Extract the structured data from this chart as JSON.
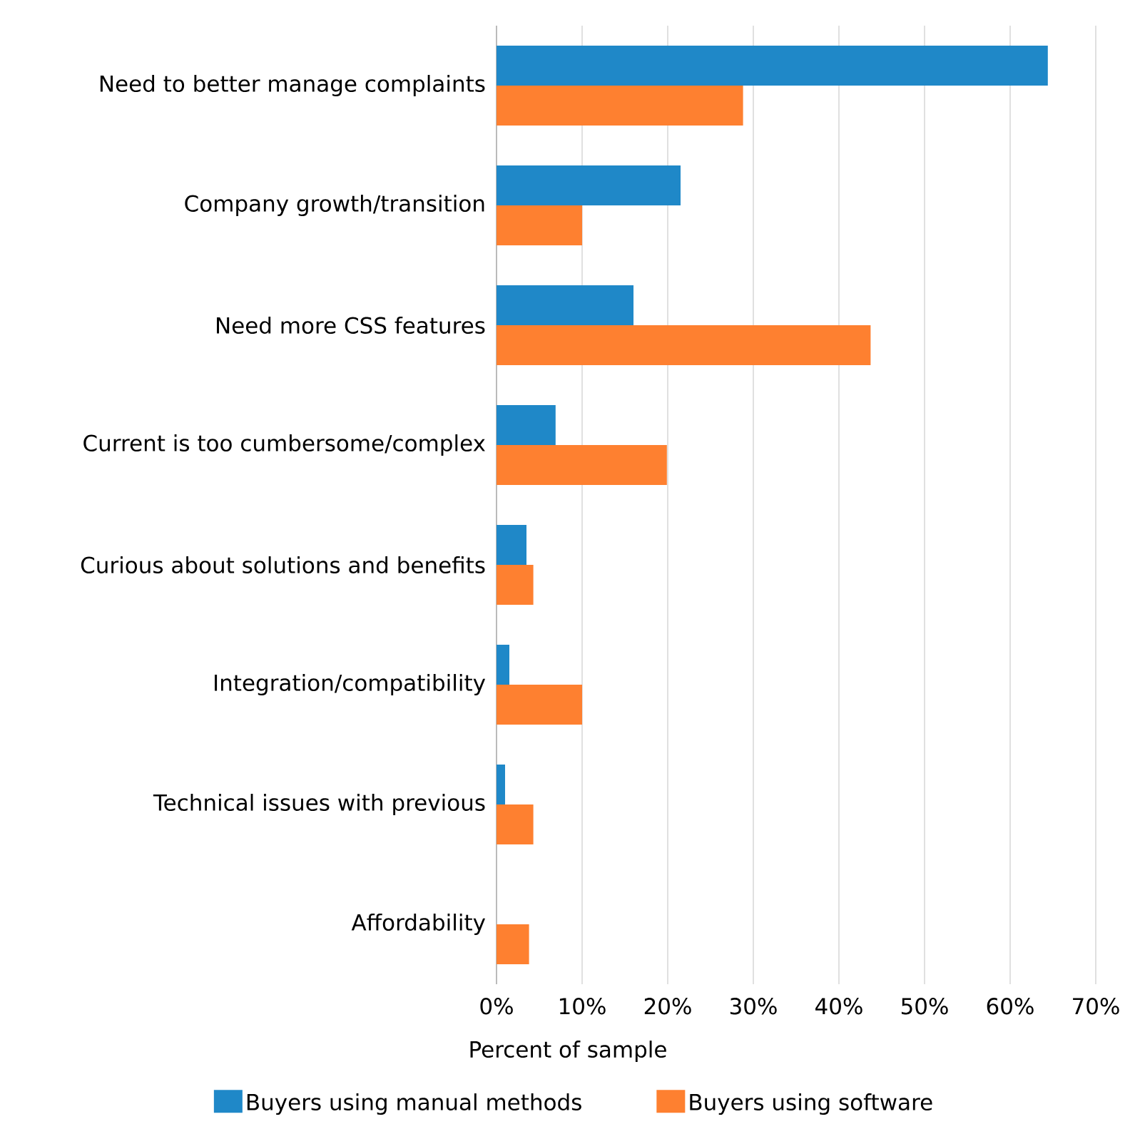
{
  "chart_data": {
    "type": "bar",
    "orientation": "horizontal",
    "xlabel": "Percent of sample",
    "categories": [
      "Need to better manage complaints",
      "Company growth/transition",
      "Need more CSS features",
      "Current is too cumbersome/complex",
      "Curious about solutions and benefits",
      "Integration/compatibility",
      "Technical issues with previous",
      "Affordability"
    ],
    "series": [
      {
        "name": "Buyers using manual methods",
        "color": "#1f88c8",
        "values": [
          64.4,
          21.5,
          16.0,
          6.9,
          3.5,
          1.5,
          1.0,
          0
        ]
      },
      {
        "name": "Buyers using software",
        "color": "#fe8030",
        "values": [
          28.8,
          10.0,
          43.7,
          19.9,
          4.3,
          10.0,
          4.3,
          3.8
        ]
      }
    ],
    "xlim": [
      0,
      70
    ],
    "xticks": [
      {
        "value": 0,
        "label": "0%"
      },
      {
        "value": 10,
        "label": "10%"
      },
      {
        "value": 20,
        "label": "20%"
      },
      {
        "value": 30,
        "label": "30%"
      },
      {
        "value": 40,
        "label": "40%"
      },
      {
        "value": 50,
        "label": "50%"
      },
      {
        "value": 60,
        "label": "60%"
      },
      {
        "value": 70,
        "label": "70%"
      }
    ],
    "grid": "x",
    "legend": "bottom"
  }
}
